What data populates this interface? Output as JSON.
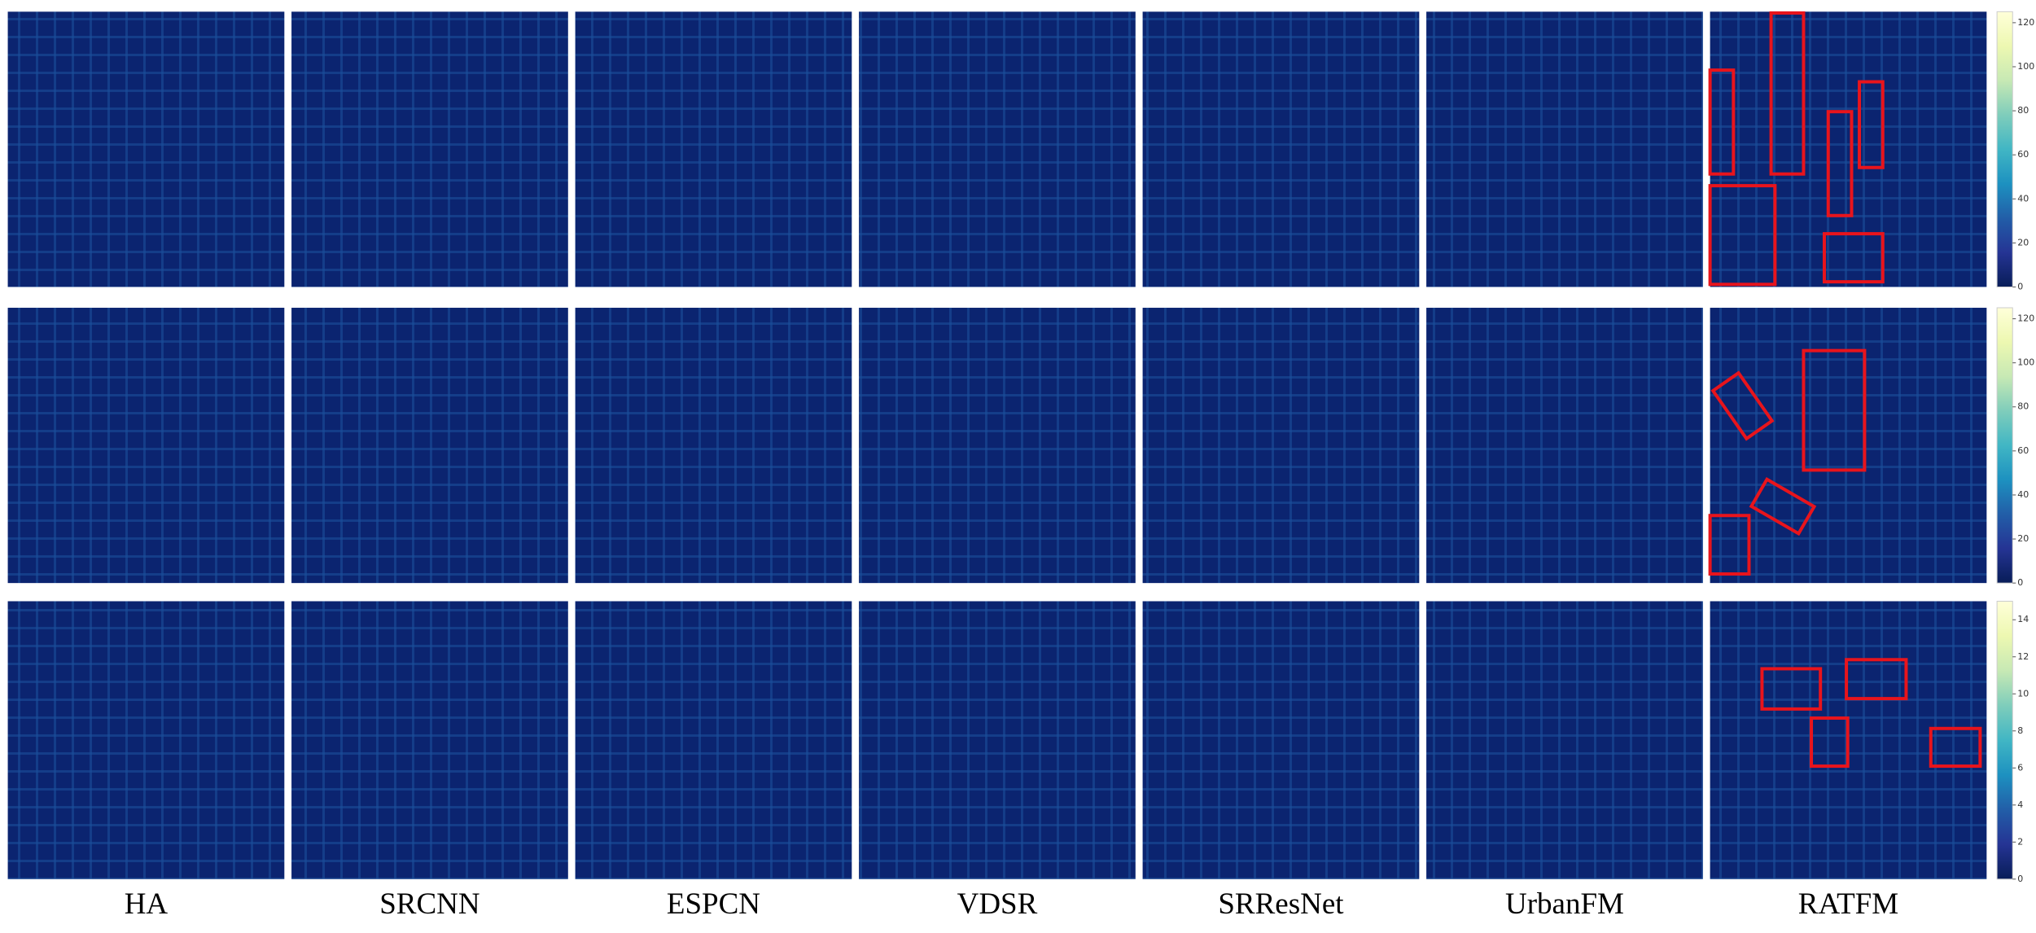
{
  "chart_data": {
    "type": "heatmap",
    "columns": [
      "HA",
      "SRCNN",
      "ESPCN",
      "VDSR",
      "SRResNet",
      "UrbanFM",
      "RATFM"
    ],
    "colormap": [
      "#081d58",
      "#253494",
      "#225ea8",
      "#1d91c0",
      "#41b6c4",
      "#7fcdbb",
      "#c7e9b4",
      "#edf8b1",
      "#ffffd9"
    ],
    "colorbars": [
      {
        "ylim": [
          0,
          125
        ],
        "yticks": [
          0,
          20,
          40,
          60,
          80,
          100,
          120
        ]
      },
      {
        "ylim": [
          0,
          125
        ],
        "yticks": [
          0,
          20,
          40,
          60,
          80,
          100,
          120
        ]
      },
      {
        "ylim": [
          0,
          15
        ],
        "yticks": [
          0,
          2,
          4,
          6,
          8,
          10,
          12,
          14
        ]
      }
    ],
    "highlight_color": "#e8141c"
  }
}
